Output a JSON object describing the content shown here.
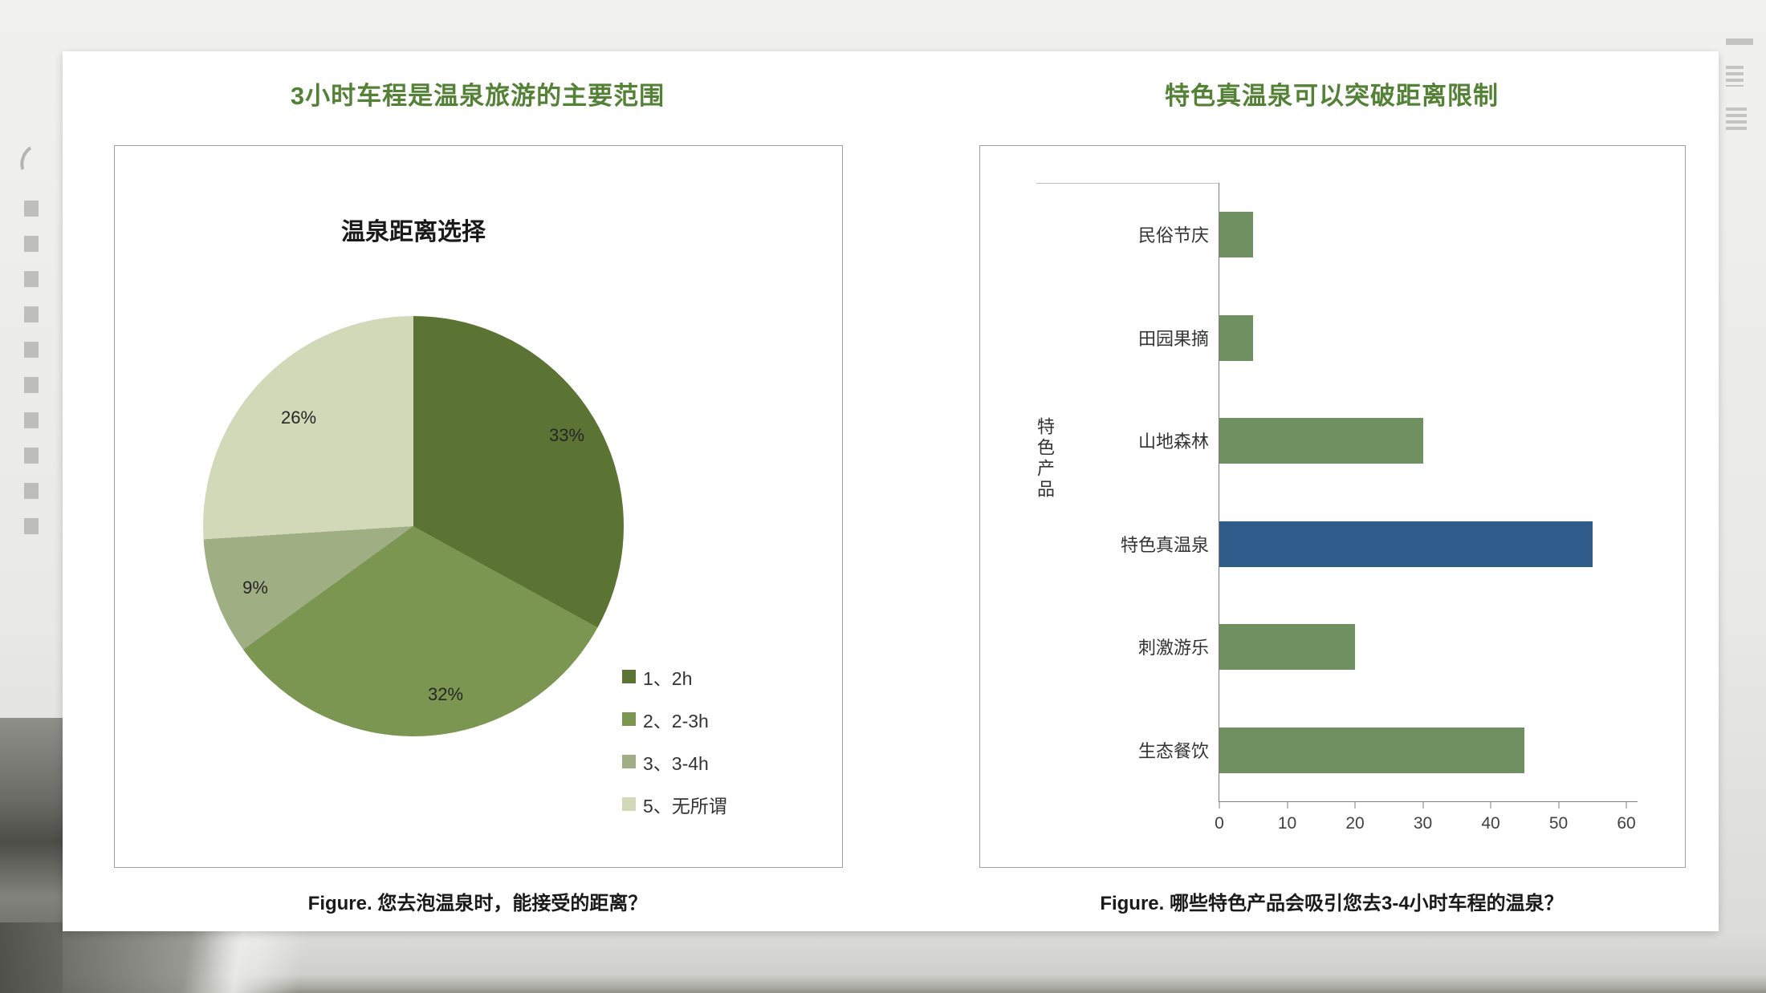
{
  "slide": {
    "panels": [
      {
        "header": "3小时车程是温泉旅游的主要范围",
        "caption": "Figure. 您去泡温泉时，能接受的距离？"
      },
      {
        "header": "特色真温泉可以突破距离限制",
        "caption": "Figure. 哪些特色产品会吸引您去3-4小时车程的温泉？"
      }
    ]
  },
  "chart_data": [
    {
      "type": "pie",
      "title": "温泉距离选择",
      "labels": [
        "1、2h",
        "2、2-3h",
        "3、3-4h",
        "5、无所谓"
      ],
      "values": [
        33,
        32,
        9,
        26
      ],
      "value_labels": [
        "33%",
        "32%",
        "9%",
        "26%"
      ],
      "colors": [
        "#5b7434",
        "#7b9650",
        "#9fae83",
        "#d1d9b8"
      ],
      "start_angle_deg": 0,
      "direction": "clockwise",
      "legend_position": "bottom-right"
    },
    {
      "type": "bar",
      "orientation": "horizontal",
      "categories": [
        "民俗节庆",
        "田园果摘",
        "山地森林",
        "特色真温泉",
        "刺激游乐",
        "生态餐饮"
      ],
      "values": [
        5,
        5,
        30,
        55,
        20,
        45
      ],
      "bar_colors": [
        "#6f9161",
        "#6f9161",
        "#6f9161",
        "#2f5c8a",
        "#6f9161",
        "#6f9161"
      ],
      "highlight_category": "特色真温泉",
      "ylabel": "特色产品",
      "xlabel": "",
      "xlim": [
        0,
        60
      ],
      "xticks": [
        0,
        10,
        20,
        30,
        40,
        50,
        60
      ],
      "grid": false
    }
  ],
  "theme": {
    "header_green": "#538135",
    "box_border": "#9e9e9e",
    "axis_gray": "#7f7f7f",
    "bar_green": "#6f9161",
    "bar_blue": "#2f5c8a",
    "text_dark": "#1a1a1a"
  }
}
